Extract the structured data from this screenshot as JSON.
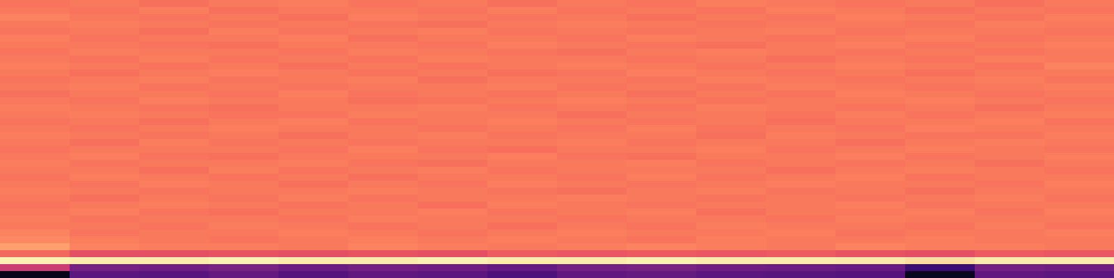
{
  "chart_data": {
    "type": "heatmap",
    "color": "magma",
    "tick_labels": false,
    "color_range": [
      0,
      1
    ],
    "cells": [
      [
        0.71,
        0.72,
        0.7,
        0.72,
        0.73,
        0.71,
        0.72,
        0.7,
        0.72,
        0.71,
        0.73,
        0.72,
        0.71,
        0.72,
        0.7,
        0.72
      ],
      [
        0.72,
        0.71,
        0.73,
        0.7,
        0.72,
        0.72,
        0.71,
        0.73,
        0.71,
        0.72,
        0.71,
        0.73,
        0.72,
        0.7,
        0.72,
        0.71
      ],
      [
        0.74,
        0.72,
        0.71,
        0.72,
        0.7,
        0.73,
        0.72,
        0.71,
        0.72,
        0.7,
        0.72,
        0.71,
        0.73,
        0.72,
        0.71,
        0.73
      ],
      [
        0.72,
        0.73,
        0.72,
        0.71,
        0.72,
        0.71,
        0.7,
        0.72,
        0.73,
        0.72,
        0.71,
        0.72,
        0.72,
        0.71,
        0.73,
        0.72
      ],
      [
        0.71,
        0.72,
        0.7,
        0.73,
        0.71,
        0.72,
        0.73,
        0.71,
        0.72,
        0.71,
        0.72,
        0.73,
        0.71,
        0.72,
        0.72,
        0.71
      ],
      [
        0.73,
        0.71,
        0.72,
        0.72,
        0.73,
        0.7,
        0.72,
        0.72,
        0.71,
        0.73,
        0.72,
        0.71,
        0.72,
        0.73,
        0.71,
        0.72
      ],
      [
        0.72,
        0.72,
        0.71,
        0.7,
        0.72,
        0.72,
        0.71,
        0.73,
        0.72,
        0.71,
        0.7,
        0.72,
        0.73,
        0.71,
        0.72,
        0.73
      ],
      [
        0.71,
        0.73,
        0.72,
        0.72,
        0.71,
        0.73,
        0.72,
        0.71,
        0.7,
        0.72,
        0.73,
        0.72,
        0.71,
        0.72,
        0.71,
        0.72
      ],
      [
        0.72,
        0.71,
        0.73,
        0.71,
        0.72,
        0.71,
        0.73,
        0.72,
        0.72,
        0.71,
        0.72,
        0.7,
        0.72,
        0.71,
        0.73,
        0.72
      ],
      [
        0.73,
        0.72,
        0.71,
        0.72,
        0.7,
        0.72,
        0.71,
        0.72,
        0.73,
        0.72,
        0.71,
        0.72,
        0.73,
        0.72,
        0.71,
        0.74
      ],
      [
        0.72,
        0.7,
        0.72,
        0.73,
        0.72,
        0.71,
        0.72,
        0.7,
        0.71,
        0.73,
        0.72,
        0.71,
        0.72,
        0.7,
        0.72,
        0.72
      ],
      [
        0.71,
        0.72,
        0.73,
        0.71,
        0.72,
        0.73,
        0.7,
        0.72,
        0.72,
        0.71,
        0.73,
        0.72,
        0.71,
        0.72,
        0.73,
        0.71
      ],
      [
        0.72,
        0.73,
        0.71,
        0.72,
        0.71,
        0.72,
        0.72,
        0.73,
        0.71,
        0.72,
        0.71,
        0.73,
        0.72,
        0.71,
        0.72,
        0.73
      ],
      [
        0.7,
        0.72,
        0.72,
        0.71,
        0.73,
        0.71,
        0.72,
        0.71,
        0.72,
        0.7,
        0.72,
        0.71,
        0.73,
        0.72,
        0.71,
        0.72
      ],
      [
        0.72,
        0.71,
        0.73,
        0.72,
        0.72,
        0.7,
        0.71,
        0.72,
        0.73,
        0.72,
        0.71,
        0.72,
        0.72,
        0.73,
        0.72,
        0.71
      ],
      [
        0.73,
        0.72,
        0.71,
        0.7,
        0.72,
        0.72,
        0.73,
        0.71,
        0.72,
        0.71,
        0.73,
        0.72,
        0.71,
        0.72,
        0.7,
        0.72
      ],
      [
        0.72,
        0.73,
        0.72,
        0.71,
        0.71,
        0.73,
        0.72,
        0.72,
        0.7,
        0.72,
        0.72,
        0.71,
        0.73,
        0.71,
        0.72,
        0.73
      ],
      [
        0.71,
        0.72,
        0.7,
        0.72,
        0.73,
        0.71,
        0.72,
        0.73,
        0.72,
        0.71,
        0.72,
        0.7,
        0.72,
        0.72,
        0.73,
        0.71
      ],
      [
        0.72,
        0.71,
        0.72,
        0.73,
        0.72,
        0.72,
        0.71,
        0.72,
        0.71,
        0.73,
        0.71,
        0.72,
        0.71,
        0.73,
        0.72,
        0.72
      ],
      [
        0.73,
        0.72,
        0.71,
        0.72,
        0.7,
        0.72,
        0.73,
        0.71,
        0.72,
        0.72,
        0.7,
        0.73,
        0.72,
        0.71,
        0.71,
        0.73
      ],
      [
        0.72,
        0.7,
        0.73,
        0.71,
        0.72,
        0.71,
        0.72,
        0.72,
        0.73,
        0.71,
        0.72,
        0.72,
        0.7,
        0.72,
        0.73,
        0.72
      ],
      [
        0.71,
        0.72,
        0.72,
        0.72,
        0.71,
        0.73,
        0.71,
        0.7,
        0.72,
        0.72,
        0.73,
        0.71,
        0.72,
        0.73,
        0.72,
        0.71
      ],
      [
        0.72,
        0.73,
        0.71,
        0.7,
        0.72,
        0.72,
        0.72,
        0.73,
        0.71,
        0.7,
        0.72,
        0.72,
        0.73,
        0.71,
        0.72,
        0.73
      ],
      [
        0.73,
        0.71,
        0.72,
        0.72,
        0.73,
        0.71,
        0.7,
        0.72,
        0.72,
        0.73,
        0.71,
        0.72,
        0.71,
        0.72,
        0.7,
        0.72
      ],
      [
        0.72,
        0.72,
        0.7,
        0.73,
        0.71,
        0.72,
        0.73,
        0.71,
        0.72,
        0.72,
        0.72,
        0.7,
        0.72,
        0.73,
        0.72,
        0.71
      ],
      [
        0.71,
        0.73,
        0.72,
        0.71,
        0.72,
        0.7,
        0.72,
        0.72,
        0.71,
        0.73,
        0.71,
        0.72,
        0.73,
        0.71,
        0.72,
        0.72
      ],
      [
        0.72,
        0.71,
        0.73,
        0.72,
        0.7,
        0.72,
        0.71,
        0.73,
        0.72,
        0.71,
        0.72,
        0.73,
        0.72,
        0.72,
        0.71,
        0.73
      ],
      [
        0.73,
        0.72,
        0.71,
        0.72,
        0.72,
        0.73,
        0.72,
        0.71,
        0.7,
        0.72,
        0.73,
        0.71,
        0.72,
        0.7,
        0.72,
        0.72
      ],
      [
        0.72,
        0.7,
        0.72,
        0.71,
        0.73,
        0.71,
        0.72,
        0.72,
        0.73,
        0.72,
        0.71,
        0.72,
        0.71,
        0.72,
        0.73,
        0.71
      ],
      [
        0.71,
        0.72,
        0.73,
        0.72,
        0.71,
        0.72,
        0.7,
        0.73,
        0.72,
        0.71,
        0.72,
        0.72,
        0.73,
        0.71,
        0.72,
        0.72
      ],
      [
        0.72,
        0.73,
        0.71,
        0.7,
        0.72,
        0.72,
        0.73,
        0.71,
        0.72,
        0.73,
        0.7,
        0.72,
        0.72,
        0.73,
        0.71,
        0.73
      ],
      [
        0.73,
        0.71,
        0.72,
        0.72,
        0.71,
        0.73,
        0.72,
        0.72,
        0.71,
        0.72,
        0.72,
        0.71,
        0.73,
        0.72,
        0.72,
        0.72
      ],
      [
        0.72,
        0.72,
        0.71,
        0.73,
        0.72,
        0.71,
        0.72,
        0.7,
        0.72,
        0.71,
        0.73,
        0.72,
        0.72,
        0.71,
        0.73,
        0.71
      ],
      [
        0.74,
        0.71,
        0.72,
        0.72,
        0.73,
        0.72,
        0.71,
        0.72,
        0.73,
        0.72,
        0.72,
        0.73,
        0.71,
        0.72,
        0.72,
        0.73
      ],
      [
        0.75,
        0.73,
        0.72,
        0.71,
        0.72,
        0.73,
        0.72,
        0.73,
        0.72,
        0.71,
        0.73,
        0.72,
        0.72,
        0.73,
        0.72,
        0.72
      ],
      [
        0.8,
        0.74,
        0.73,
        0.73,
        0.72,
        0.74,
        0.73,
        0.72,
        0.73,
        0.74,
        0.73,
        0.72,
        0.74,
        0.73,
        0.73,
        0.72
      ],
      [
        0.68,
        0.62,
        0.62,
        0.63,
        0.62,
        0.63,
        0.62,
        0.65,
        0.64,
        0.65,
        0.64,
        0.65,
        0.63,
        0.62,
        0.65,
        0.64
      ],
      [
        0.97,
        0.96,
        0.96,
        0.97,
        0.96,
        0.96,
        0.97,
        0.96,
        0.96,
        0.97,
        0.96,
        0.96,
        0.95,
        0.93,
        0.96,
        0.96
      ],
      [
        0.55,
        0.34,
        0.33,
        0.35,
        0.32,
        0.34,
        0.33,
        0.3,
        0.34,
        0.35,
        0.33,
        0.32,
        0.31,
        0.2,
        0.34,
        0.33
      ],
      [
        0.05,
        0.28,
        0.27,
        0.3,
        0.26,
        0.29,
        0.28,
        0.24,
        0.29,
        0.3,
        0.28,
        0.27,
        0.26,
        0.06,
        0.29,
        0.28
      ]
    ]
  }
}
